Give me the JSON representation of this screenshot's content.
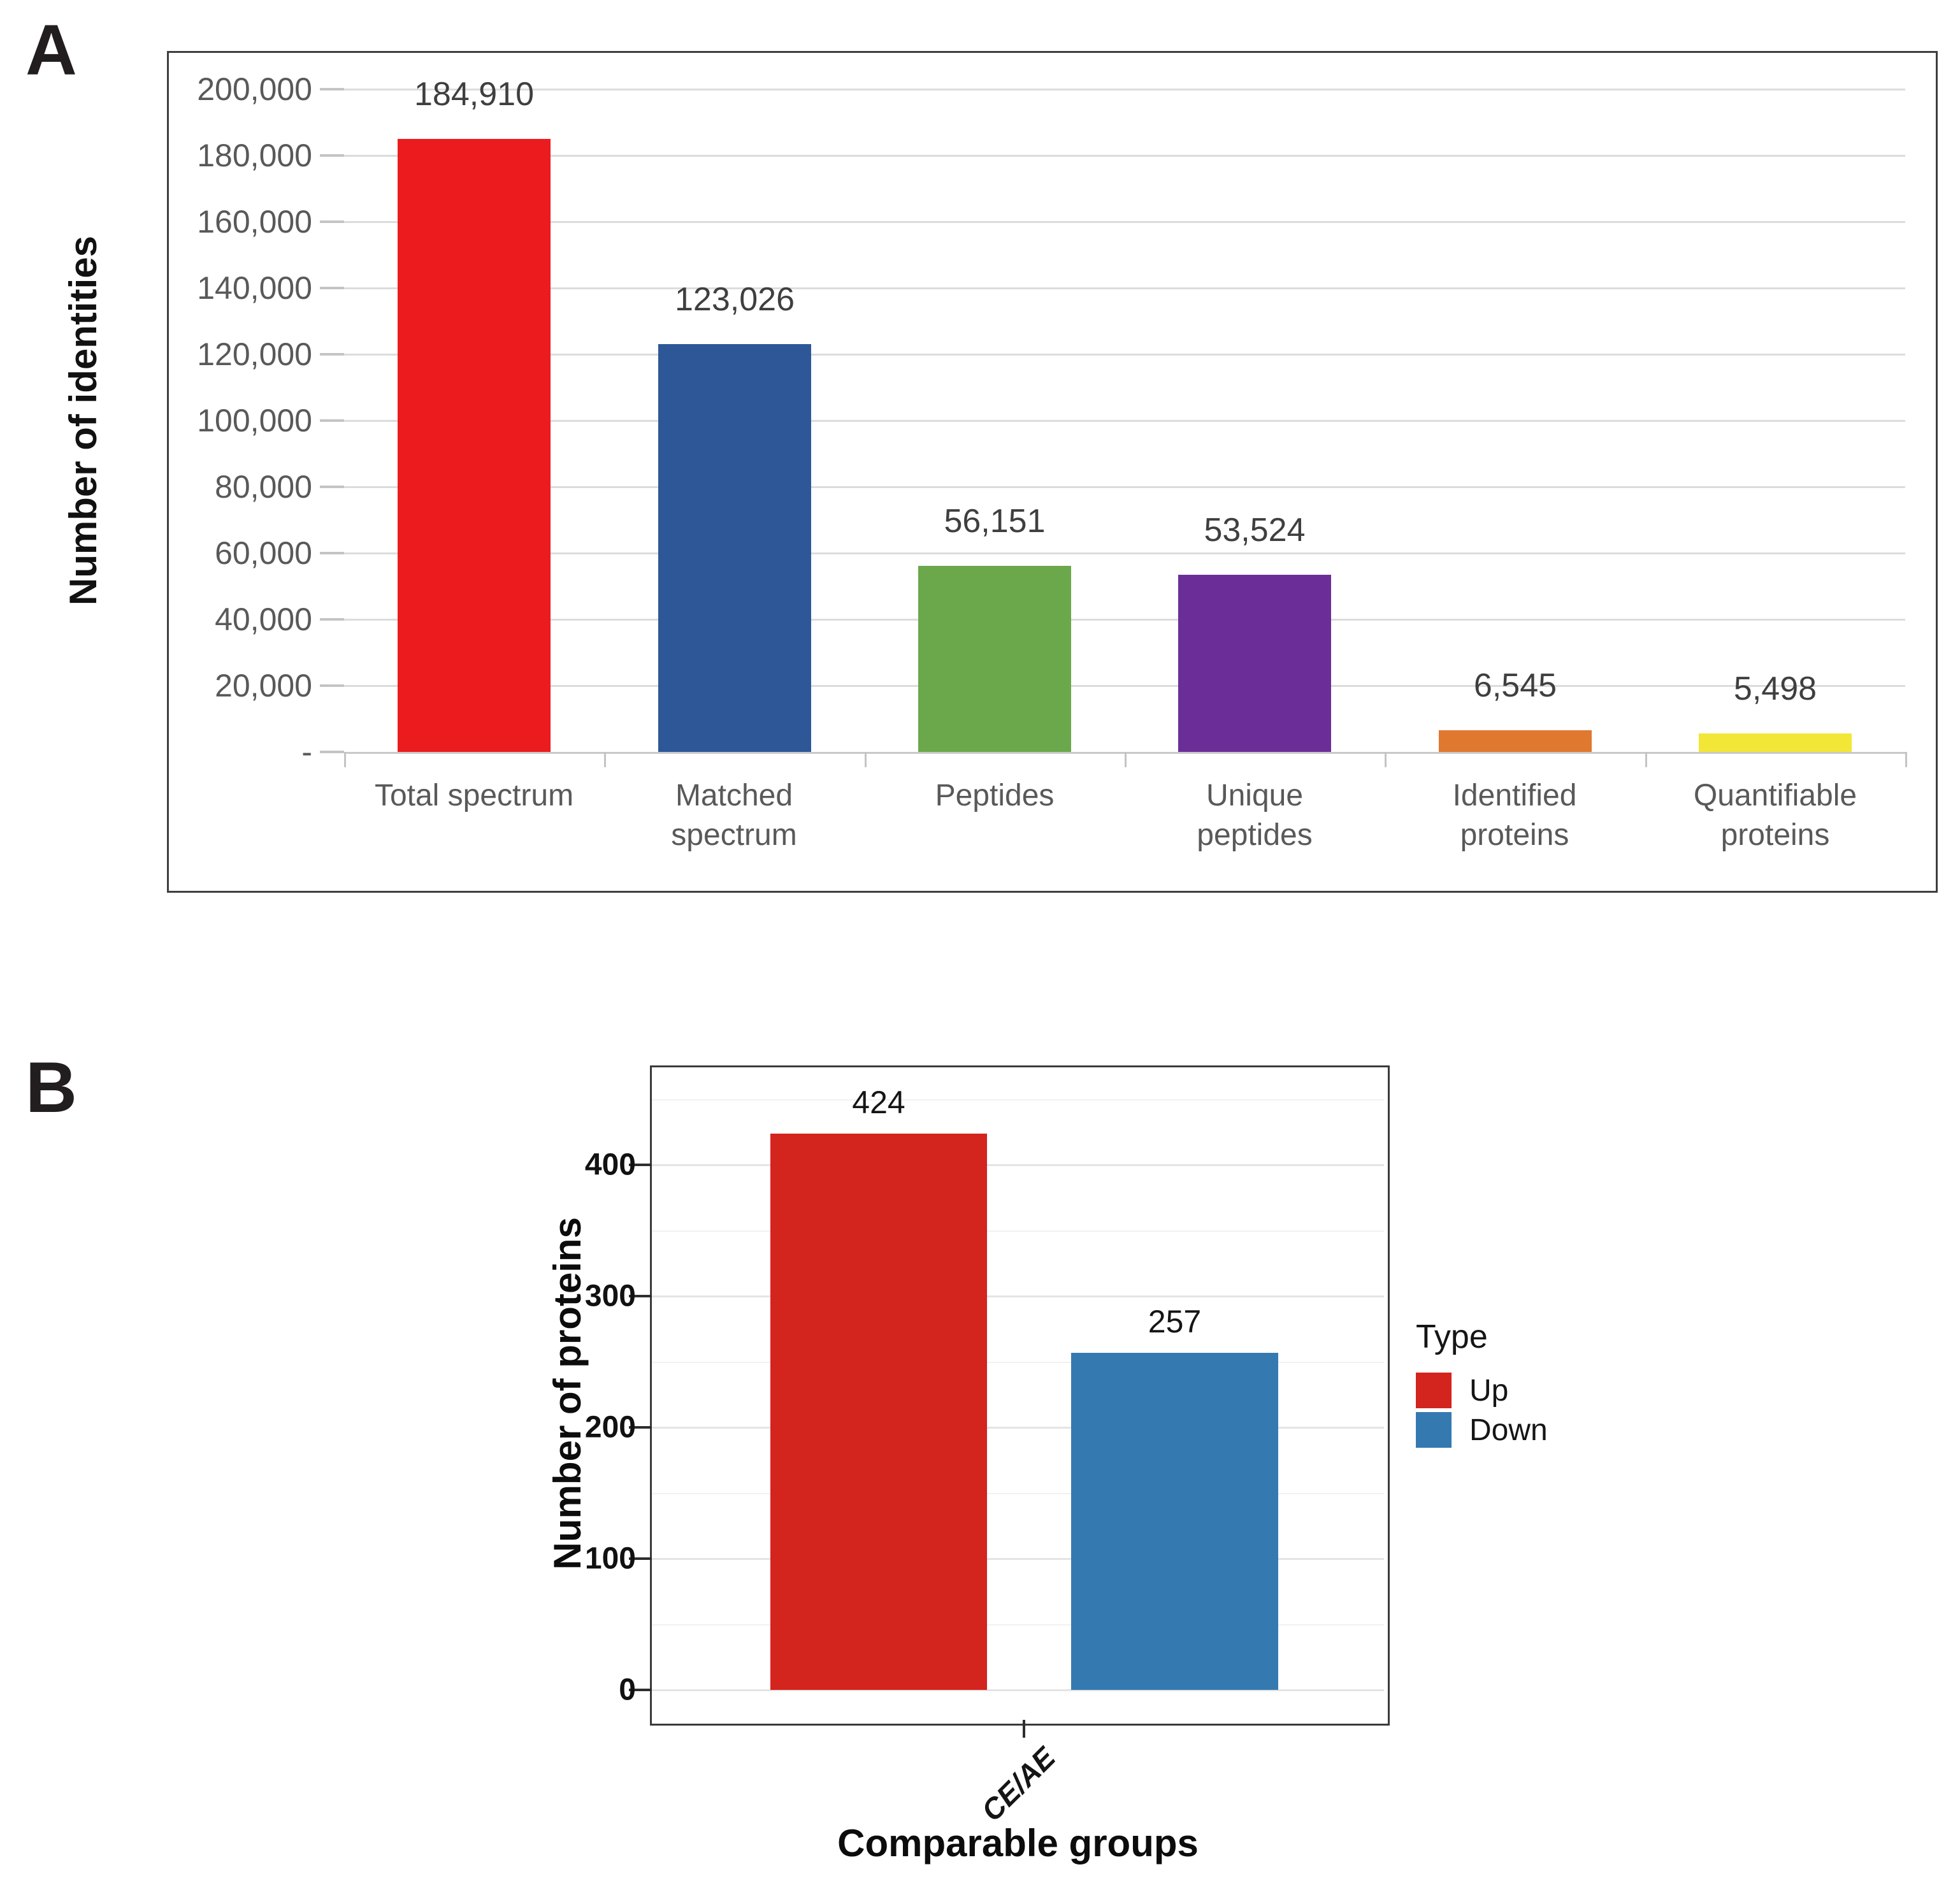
{
  "panels": {
    "a": {
      "letter": "A"
    },
    "b": {
      "letter": "B"
    }
  },
  "chart_data": [
    {
      "id": "identification-summary",
      "type": "bar",
      "title": "",
      "xlabel": "",
      "ylabel": "Number of identities",
      "ylim": [
        0,
        200000
      ],
      "grid": true,
      "legend_position": "none",
      "yticks": {
        "values": [
          200000,
          180000,
          160000,
          140000,
          120000,
          100000,
          80000,
          60000,
          40000,
          20000,
          0
        ],
        "labels": [
          "200,000",
          "180,000",
          "160,000",
          "140,000",
          "120,000",
          "100,000",
          "80,000",
          "60,000",
          "40,000",
          "20,000",
          "-"
        ]
      },
      "categories": [
        "Total spectrum",
        "Matched\nspectrum",
        "Peptides",
        "Unique\npeptides",
        "Identified\nproteins",
        "Quantifiable\nproteins"
      ],
      "values": [
        184910,
        123026,
        56151,
        53524,
        6545,
        5498
      ],
      "value_labels": [
        "184,910",
        "123,026",
        "56,151",
        "53,524",
        "6,545",
        "5,498"
      ],
      "bar_colors": [
        "#ec1b1e",
        "#2e5797",
        "#6ba84b",
        "#6b2e99",
        "#e0782f",
        "#f2e636"
      ]
    },
    {
      "id": "differential-proteins",
      "type": "bar",
      "title": "",
      "xlabel": "Comparable groups",
      "ylabel": "Number of proteins",
      "ylim": [
        0,
        465
      ],
      "grid": true,
      "legend_position": "right",
      "yticks": {
        "values": [
          0,
          100,
          200,
          300,
          400
        ],
        "labels": [
          "0",
          "100",
          "200",
          "300",
          "400"
        ]
      },
      "minor_gridlines": [
        50,
        150,
        250,
        350,
        450
      ],
      "categories": [
        "CE/AE"
      ],
      "series": [
        {
          "name": "Up",
          "color": "#d3241e",
          "values": [
            424
          ],
          "value_labels": [
            "424"
          ]
        },
        {
          "name": "Down",
          "color": "#3579b1",
          "values": [
            257
          ],
          "value_labels": [
            "257"
          ]
        }
      ],
      "legend": {
        "title": "Type"
      }
    }
  ],
  "style_colors": {
    "a_grid": "#dcdcdc",
    "a_axis": "#c9c9c9",
    "a_tick": "#c4c4c4",
    "a_tick_text": "#595959",
    "a_value_text": "#3f3f3f",
    "b_grid_major": "#e4e4e4",
    "b_grid_minor": "#f1f1f1",
    "b_tick": "#2e2e2e"
  }
}
